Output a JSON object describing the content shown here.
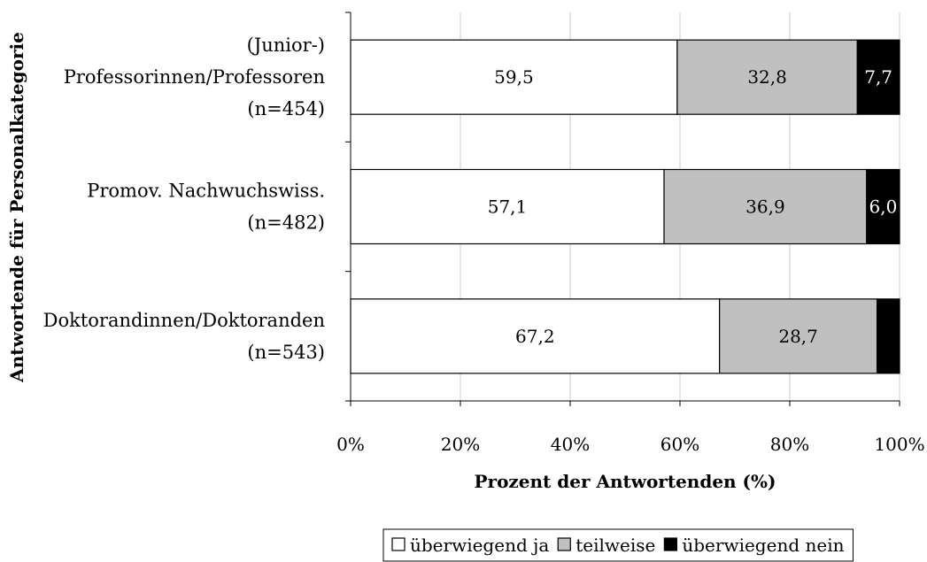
{
  "chart_data": {
    "type": "bar",
    "orientation": "horizontal",
    "stacked": true,
    "title": "",
    "xlabel": "Prozent der Antwortenden (%)",
    "ylabel": "Antwortende für Personalkategorie",
    "xlim": [
      0,
      100
    ],
    "x_ticks": [
      "0%",
      "20%",
      "40%",
      "60%",
      "80%",
      "100%"
    ],
    "grid": "vertical",
    "legend_position": "bottom",
    "categories": [
      [
        "(Junior-)",
        "Professorinnen/Professoren",
        "(n=454)"
      ],
      [
        "Promov. Nachwuchswiss.",
        "(n=482)"
      ],
      [
        "Doktorandinnen/Doktoranden",
        "(n=543)"
      ]
    ],
    "series": [
      {
        "name": "überwiegend ja",
        "color": "#ffffff",
        "label_color": "#000000",
        "values": [
          59.5,
          57.1,
          67.2
        ],
        "labels": [
          "59,5",
          "57,1",
          "67,2"
        ]
      },
      {
        "name": "teilweise",
        "color": "#c0c0c0",
        "label_color": "#000000",
        "values": [
          32.8,
          36.9,
          28.7
        ],
        "labels": [
          "32,8",
          "36,9",
          "28,7"
        ]
      },
      {
        "name": "überwiegend nein",
        "color": "#000000",
        "label_color": "#ffffff",
        "values": [
          7.7,
          6.0,
          4.1
        ],
        "labels": [
          "7,7",
          "6,0",
          ""
        ]
      }
    ]
  }
}
